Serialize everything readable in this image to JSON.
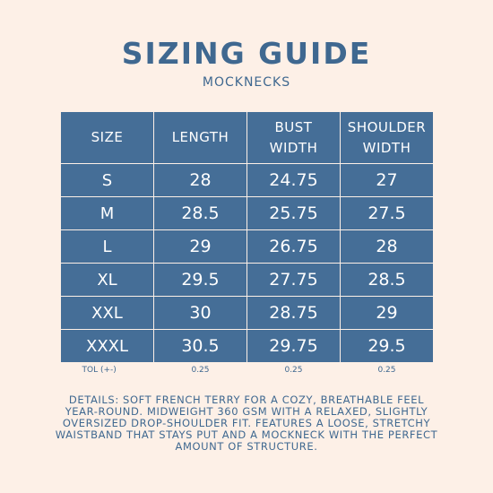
{
  "title": "SIZING GUIDE",
  "subtitle": "MOCKNECKS",
  "table": {
    "headers": {
      "size": "SIZE",
      "length": "LENGTH",
      "bust_line1": "BUST",
      "bust_line2": "WIDTH",
      "shoulder_line1": "SHOULDER",
      "shoulder_line2": "WIDTH"
    },
    "rows": [
      {
        "size": "S",
        "length": "28",
        "bust": "24.75",
        "shoulder": "27"
      },
      {
        "size": "M",
        "length": "28.5",
        "bust": "25.75",
        "shoulder": "27.5"
      },
      {
        "size": "L",
        "length": "29",
        "bust": "26.75",
        "shoulder": "28"
      },
      {
        "size": "XL",
        "length": "29.5",
        "bust": "27.75",
        "shoulder": "28.5"
      },
      {
        "size": "XXL",
        "length": "30",
        "bust": "28.75",
        "shoulder": "29"
      },
      {
        "size": "XXXL",
        "length": "30.5",
        "bust": "29.75",
        "shoulder": "29.5"
      }
    ],
    "tolerance": {
      "label": "TOL (+-)",
      "length": "0.25",
      "bust": "0.25",
      "shoulder": "0.25"
    }
  },
  "details": "DETAILS: SOFT FRENCH TERRY FOR A COZY, BREATHABLE FEEL YEAR-ROUND. MIDWEIGHT 360 GSM WITH A RELAXED, SLIGHTLY OVERSIZED DROP-SHOULDER FIT. FEATURES A LOOSE, STRETCHY WAISTBAND THAT STAYS PUT AND A MOCKNECK WITH THE PERFECT AMOUNT OF STRUCTURE.",
  "colors": {
    "background": "#fdf0e7",
    "table_fill": "#456e97",
    "text": "#3f6890"
  }
}
